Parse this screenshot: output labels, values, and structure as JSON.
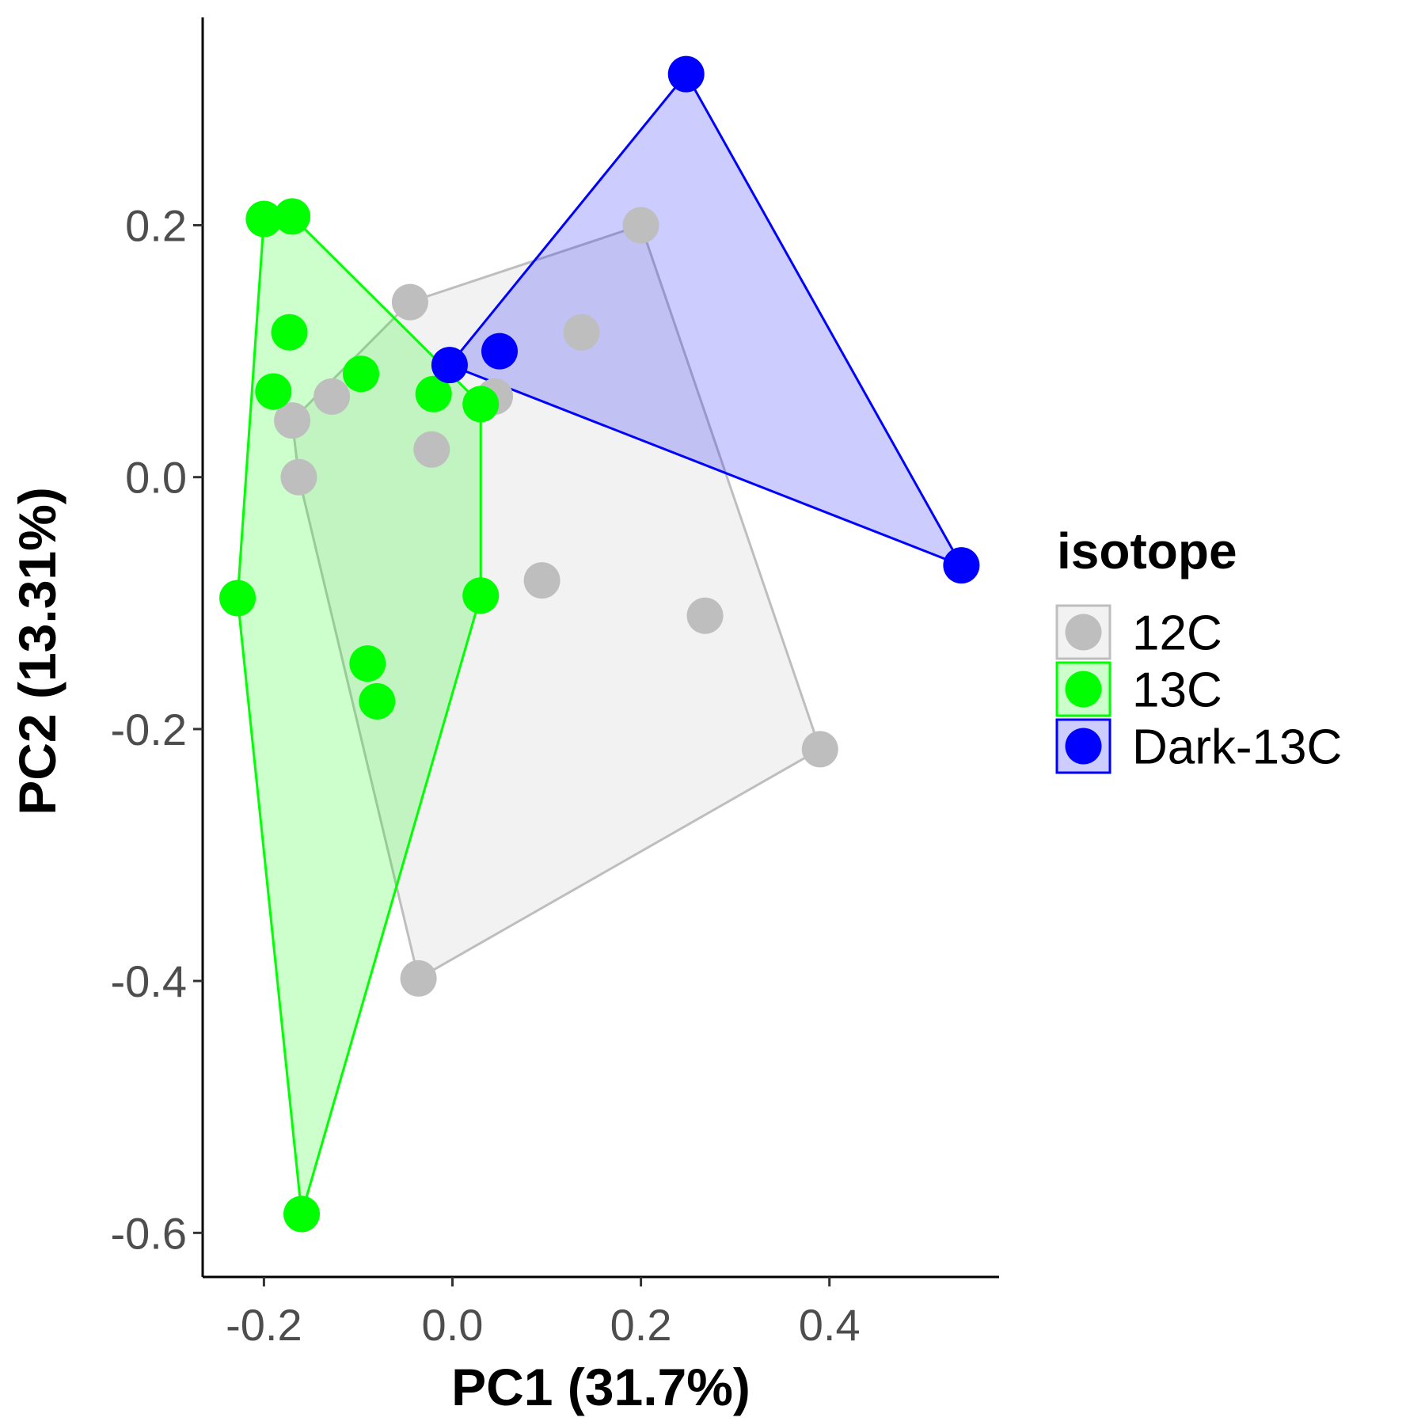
{
  "chart_data": {
    "type": "scatter",
    "title": "",
    "xlabel": "PC1 (31.7%)",
    "ylabel": "PC2 (13.31%)",
    "xlim": [
      -0.265,
      0.58
    ],
    "ylim": [
      -0.635,
      0.365
    ],
    "xticks": [
      -0.2,
      0.0,
      0.2,
      0.4
    ],
    "xtick_labels": [
      "-0.2",
      "0.0",
      "0.2",
      "0.4"
    ],
    "yticks": [
      -0.6,
      -0.4,
      -0.2,
      0.0,
      0.2
    ],
    "ytick_labels": [
      "-0.6",
      "-0.4",
      "-0.2",
      "0.0",
      "0.2"
    ],
    "grid": false,
    "legend": {
      "title": "isotope",
      "position": "right"
    },
    "series": [
      {
        "name": "12C",
        "color": "#bebebe",
        "fill": "#bebebe",
        "points": [
          [
            -0.045,
            0.139
          ],
          [
            0.2,
            0.2
          ],
          [
            0.137,
            0.115
          ],
          [
            0.045,
            0.064
          ],
          [
            -0.128,
            0.064
          ],
          [
            -0.17,
            0.045
          ],
          [
            -0.163,
            0.0
          ],
          [
            -0.022,
            0.022
          ],
          [
            0.095,
            -0.082
          ],
          [
            0.268,
            -0.11
          ],
          [
            0.39,
            -0.216
          ],
          [
            -0.036,
            -0.398
          ]
        ],
        "hull": [
          [
            -0.045,
            0.139
          ],
          [
            0.2,
            0.2
          ],
          [
            0.39,
            -0.216
          ],
          [
            -0.036,
            -0.398
          ],
          [
            -0.163,
            0.0
          ],
          [
            -0.17,
            0.045
          ]
        ]
      },
      {
        "name": "13C",
        "color": "#00ff00",
        "fill": "#00ff00",
        "points": [
          [
            -0.2,
            0.205
          ],
          [
            -0.17,
            0.207
          ],
          [
            -0.173,
            0.115
          ],
          [
            -0.097,
            0.082
          ],
          [
            -0.19,
            0.068
          ],
          [
            -0.02,
            0.066
          ],
          [
            0.03,
            0.058
          ],
          [
            -0.228,
            -0.096
          ],
          [
            0.03,
            -0.094
          ],
          [
            -0.09,
            -0.148
          ],
          [
            -0.08,
            -0.178
          ],
          [
            -0.16,
            -0.585
          ]
        ],
        "hull": [
          [
            -0.2,
            0.205
          ],
          [
            -0.17,
            0.207
          ],
          [
            0.03,
            0.058
          ],
          [
            0.03,
            -0.094
          ],
          [
            -0.16,
            -0.585
          ],
          [
            -0.228,
            -0.096
          ]
        ]
      },
      {
        "name": "Dark-13C",
        "color": "#0000ff",
        "fill": "#0000ff",
        "points": [
          [
            0.248,
            0.32
          ],
          [
            -0.003,
            0.089
          ],
          [
            0.05,
            0.1
          ],
          [
            0.54,
            -0.07
          ]
        ],
        "hull": [
          [
            -0.003,
            0.089
          ],
          [
            0.248,
            0.32
          ],
          [
            0.54,
            -0.07
          ]
        ]
      }
    ]
  }
}
